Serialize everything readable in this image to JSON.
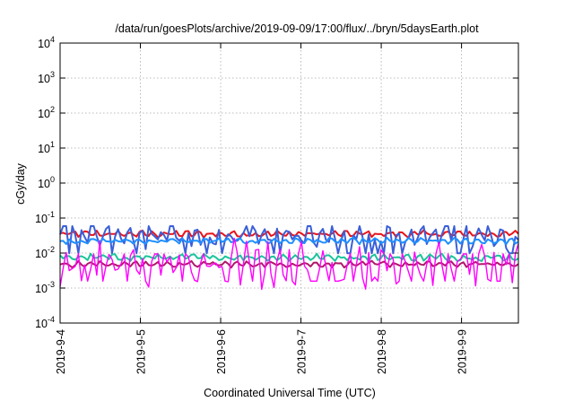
{
  "chart_data": {
    "type": "line",
    "title": "/data/run/goesPlots/archive/2019-09-09/17:00/flux/../bryn/5daysEarth.plot",
    "xlabel": "Coordinated Universal Time (UTC)",
    "ylabel": "cGy/day",
    "yscale": "log",
    "ylim": [
      0.0001,
      10000
    ],
    "y_ticks": [
      {
        "value": 0.0001,
        "base": "10",
        "exp": "-4"
      },
      {
        "value": 0.001,
        "base": "10",
        "exp": "-3"
      },
      {
        "value": 0.01,
        "base": "10",
        "exp": "-2"
      },
      {
        "value": 0.1,
        "base": "10",
        "exp": "-1"
      },
      {
        "value": 1,
        "base": "10",
        "exp": "0"
      },
      {
        "value": 10,
        "base": "10",
        "exp": "1"
      },
      {
        "value": 100,
        "base": "10",
        "exp": "2"
      },
      {
        "value": 1000,
        "base": "10",
        "exp": "3"
      },
      {
        "value": 10000,
        "base": "10",
        "exp": "4"
      }
    ],
    "xlim": [
      "2019-09-04T00:00",
      "2019-09-09T17:00"
    ],
    "x_ticks": [
      "2019-9-4",
      "2019-9-5",
      "2019-9-6",
      "2019-9-7",
      "2019-9-8",
      "2019-9-9"
    ],
    "grid": true,
    "legend": "none",
    "series": [
      {
        "color": "#e8141b",
        "level": 0.035,
        "spread": 0.12,
        "dips": false
      },
      {
        "color": "#3a5fd9",
        "level": 0.028,
        "spread": 0.35,
        "dips": true
      },
      {
        "color": "#1f8fff",
        "level": 0.022,
        "spread": 0.1,
        "dips": false
      },
      {
        "color": "#1bc49b",
        "level": 0.0075,
        "spread": 0.12,
        "dips": false
      },
      {
        "color": "#b0186a",
        "level": 0.0048,
        "spread": 0.1,
        "dips": false
      },
      {
        "color": "#ff00ff",
        "level": 0.0045,
        "spread": 0.8,
        "dips": true
      }
    ]
  }
}
